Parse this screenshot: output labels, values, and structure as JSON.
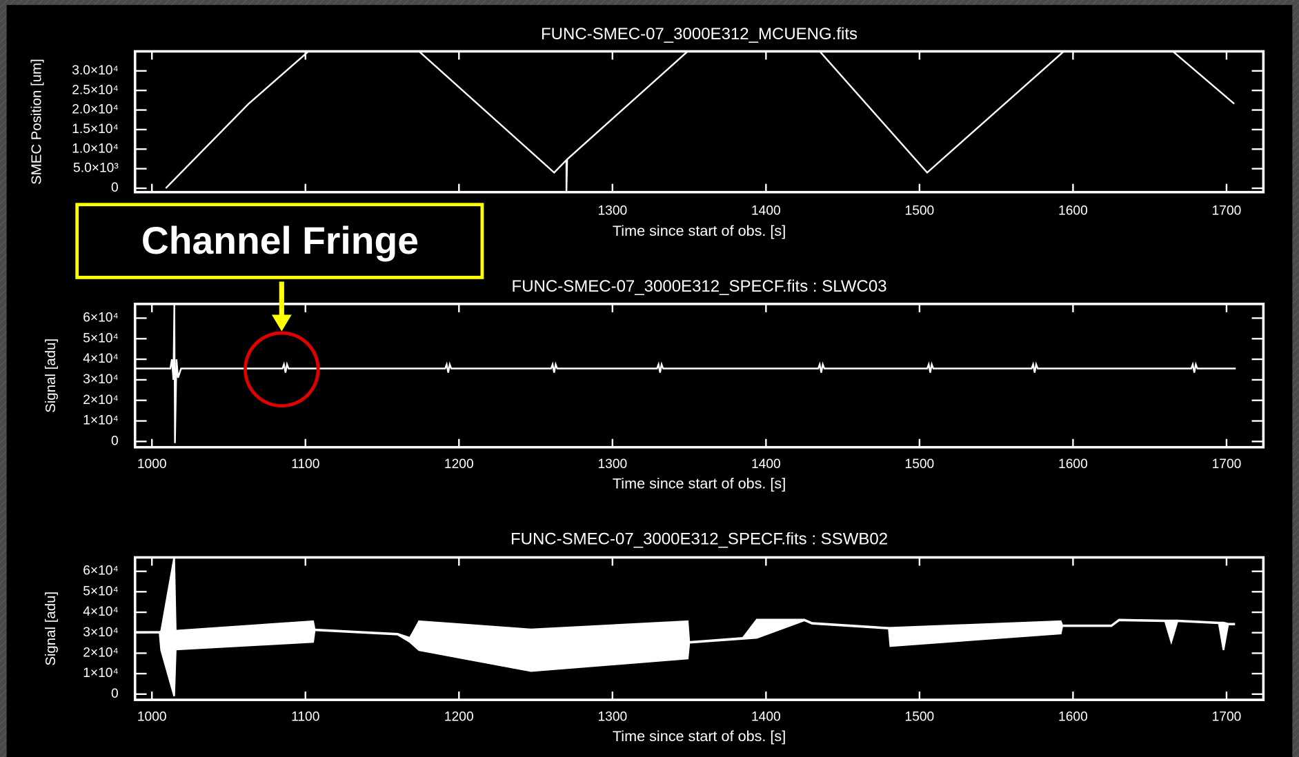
{
  "chart_data": [
    {
      "type": "line",
      "title": "FUNC-SMEC-07_3000E312_MCUENG.fits",
      "xlabel": "Time since start of obs. [s]",
      "ylabel": "SMEC Position [um]",
      "color": "#ffffff",
      "x": [
        1009,
        1063,
        1102,
        1174,
        1262,
        1270,
        1270,
        1270.5,
        1349,
        1435,
        1505,
        1594,
        1665,
        1705
      ],
      "values": [
        0,
        21600,
        35000,
        35000,
        4000,
        7200,
        -1000,
        7400,
        35000,
        35000,
        4000,
        35000,
        35000,
        21600
      ],
      "xlim": [
        989,
        1724
      ],
      "xticks": [
        1000,
        1100,
        1200,
        1300,
        1400,
        1500,
        1600,
        1700
      ],
      "ylim": [
        -1000,
        35000
      ],
      "yticks": [
        0,
        {
          "value": 5000,
          "label": "5.0×10³"
        },
        {
          "value": 10000,
          "label": "1.0×10⁴"
        },
        {
          "value": 15000,
          "label": "1.5×10⁴"
        },
        {
          "value": 20000,
          "label": "2.0×10⁴"
        },
        {
          "value": 25000,
          "label": "2.5×10⁴"
        },
        {
          "value": 30000,
          "label": "3.0×10⁴"
        }
      ]
    },
    {
      "type": "line",
      "title": "FUNC-SMEC-07_3000E312_SPECF.fits : SLWC03",
      "xlabel": "Time since start of obs. [s]",
      "ylabel": "Signal [adu]",
      "color": "#ffffff",
      "x": [
        989,
        1012,
        1013,
        1014,
        1014.6,
        1015,
        1016,
        1017,
        1019,
        1085,
        1086,
        1087,
        1088,
        1089,
        1191,
        1192,
        1193,
        1194,
        1195,
        1260,
        1261,
        1262,
        1263,
        1264,
        1329,
        1330,
        1331,
        1332,
        1333,
        1434,
        1435,
        1436,
        1437,
        1438,
        1505,
        1506,
        1507,
        1508,
        1509,
        1573,
        1574,
        1575,
        1576,
        1577,
        1677,
        1678,
        1679,
        1680,
        1681,
        1706
      ],
      "values": [
        35500,
        35500,
        40000,
        30000,
        67000,
        -800,
        40000,
        31000,
        35500,
        35500,
        37500,
        33500,
        37500,
        35500,
        35500,
        37500,
        33500,
        37500,
        35500,
        35500,
        37500,
        33500,
        37500,
        35500,
        35500,
        37500,
        33500,
        37500,
        35500,
        35500,
        37500,
        33500,
        37500,
        35500,
        35500,
        37500,
        33500,
        37500,
        35500,
        35500,
        37500,
        33500,
        37500,
        35500,
        35500,
        37500,
        33500,
        37500,
        35500,
        35500
      ],
      "xlim": [
        989,
        1724
      ],
      "xticks": [
        1000,
        1100,
        1200,
        1300,
        1400,
        1500,
        1600,
        1700
      ],
      "ylim": [
        -2800,
        66900
      ],
      "yticks": [
        0,
        {
          "value": 10000,
          "label": "1×10⁴"
        },
        {
          "value": 20000,
          "label": "2×10⁴"
        },
        {
          "value": 30000,
          "label": "3×10⁴"
        },
        {
          "value": 40000,
          "label": "4×10⁴"
        },
        {
          "value": 50000,
          "label": "5×10⁴"
        },
        {
          "value": 60000,
          "label": "6×10⁴"
        }
      ]
    },
    {
      "type": "band",
      "title": "FUNC-SMEC-07_3000E312_SPECF.fits : SSWB02",
      "xlabel": "Time since start of obs. [s]",
      "ylabel": "Signal [adu]",
      "color": "#ffffff",
      "x": [
        989,
        1005,
        1006,
        1014.5,
        1015.5,
        1105,
        1106,
        1160,
        1168,
        1174,
        1247,
        1349,
        1350,
        1385,
        1394,
        1425,
        1430,
        1480,
        1481,
        1592,
        1593,
        1625,
        1630,
        1660,
        1664,
        1668,
        1695,
        1698,
        1701,
        1705
      ],
      "upper": [
        30400,
        30400,
        30800,
        66800,
        31000,
        35600,
        31600,
        29500,
        27500,
        35600,
        31600,
        35600,
        25500,
        27500,
        36400,
        36400,
        34800,
        32400,
        32400,
        35600,
        33600,
        33600,
        36400,
        36000,
        36000,
        36000,
        35000,
        35000,
        34400,
        34400
      ],
      "lower": [
        30000,
        30000,
        21500,
        -1000,
        21800,
        25500,
        31200,
        29100,
        25500,
        21500,
        11300,
        17400,
        25100,
        27000,
        27500,
        36000,
        34400,
        32000,
        23500,
        29600,
        33200,
        33200,
        36000,
        35600,
        25500,
        35600,
        34600,
        21500,
        34000,
        34000
      ],
      "xlim": [
        989,
        1724
      ],
      "xticks": [
        1000,
        1100,
        1200,
        1300,
        1400,
        1500,
        1600,
        1700
      ],
      "ylim": [
        -2800,
        66800
      ],
      "yticks": [
        0,
        {
          "value": 10000,
          "label": "1×10⁴"
        },
        {
          "value": 20000,
          "label": "2×10⁴"
        },
        {
          "value": 30000,
          "label": "3×10⁴"
        },
        {
          "value": 40000,
          "label": "4×10⁴"
        },
        {
          "value": 50000,
          "label": "5×10⁴"
        },
        {
          "value": 60000,
          "label": "6×10⁴"
        }
      ]
    }
  ],
  "annotation": {
    "text": "Channel Fringe"
  }
}
